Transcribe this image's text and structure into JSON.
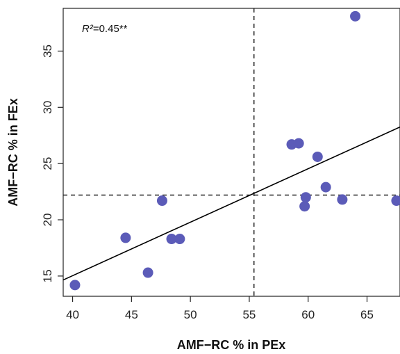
{
  "chart_data": {
    "type": "scatter",
    "xlabel": "AMF−RC % in PEx",
    "ylabel": "AMF−RC % in FEx",
    "xlim": [
      39.2,
      67.8
    ],
    "ylim": [
      13.2,
      38.8
    ],
    "xticks": [
      "40",
      "45",
      "50",
      "55",
      "60",
      "65"
    ],
    "yticks": [
      "15",
      "20",
      "25",
      "30",
      "35"
    ],
    "annotation": {
      "symbol": "R²",
      "value": "=0.45**"
    },
    "points": [
      {
        "x": 40.2,
        "y": 14.2
      },
      {
        "x": 44.5,
        "y": 18.4
      },
      {
        "x": 46.4,
        "y": 15.3
      },
      {
        "x": 47.6,
        "y": 21.7
      },
      {
        "x": 48.4,
        "y": 18.3
      },
      {
        "x": 49.1,
        "y": 18.3
      },
      {
        "x": 58.6,
        "y": 26.7
      },
      {
        "x": 59.2,
        "y": 26.8
      },
      {
        "x": 59.7,
        "y": 21.2
      },
      {
        "x": 59.8,
        "y": 22.0
      },
      {
        "x": 60.8,
        "y": 25.6
      },
      {
        "x": 61.5,
        "y": 22.9
      },
      {
        "x": 62.9,
        "y": 21.8
      },
      {
        "x": 64.0,
        "y": 38.1
      },
      {
        "x": 67.5,
        "y": 21.7
      }
    ],
    "regression_line": {
      "x": [
        39.2,
        67.8
      ],
      "y": [
        14.65,
        28.25
      ]
    },
    "mean_x": 55.4,
    "mean_y": 22.2,
    "colors": {
      "point": "#5b5bb8",
      "line": "#000000"
    },
    "grid": false
  }
}
